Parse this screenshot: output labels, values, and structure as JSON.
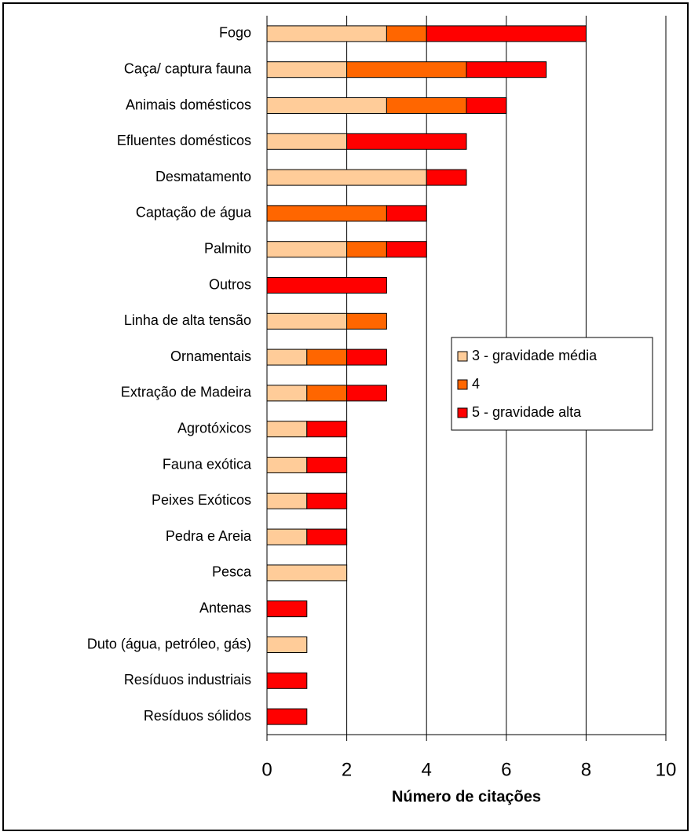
{
  "chart_data": {
    "type": "stacked_barh",
    "xlabel": "Número de citações",
    "categories": [
      "Fogo",
      "Caça/ captura fauna",
      "Animais domésticos",
      "Efluentes domésticos",
      "Desmatamento",
      "Captação de água",
      "Palmito",
      "Outros",
      "Linha de alta tensão",
      "Ornamentais",
      "Extração de Madeira",
      "Agrotóxicos",
      "Fauna exótica",
      "Peixes Exóticos",
      "Pedra e Areia",
      "Pesca",
      "Antenas",
      "Duto (água, petróleo, gás)",
      "Resíduos industriais",
      "Resíduos sólidos"
    ],
    "series": [
      {
        "name": "3 - gravidade média",
        "color": "#FFCC99",
        "values": [
          3,
          2,
          3,
          2,
          4,
          0,
          2,
          0,
          2,
          1,
          1,
          1,
          1,
          1,
          1,
          2,
          0,
          1,
          0,
          0
        ]
      },
      {
        "name": "4",
        "color": "#FF6600",
        "values": [
          1,
          3,
          2,
          0,
          0,
          3,
          1,
          0,
          1,
          1,
          1,
          0,
          0,
          0,
          0,
          0,
          0,
          0,
          0,
          0
        ]
      },
      {
        "name": "5 - gravidade alta",
        "color": "#FF0000",
        "values": [
          4,
          2,
          1,
          3,
          1,
          1,
          1,
          3,
          0,
          1,
          1,
          1,
          1,
          1,
          1,
          0,
          1,
          0,
          1,
          1
        ]
      }
    ],
    "xlim": [
      0,
      10
    ],
    "xticks": [
      0,
      2,
      4,
      6,
      8,
      10
    ],
    "grid": true,
    "legend": "right"
  }
}
